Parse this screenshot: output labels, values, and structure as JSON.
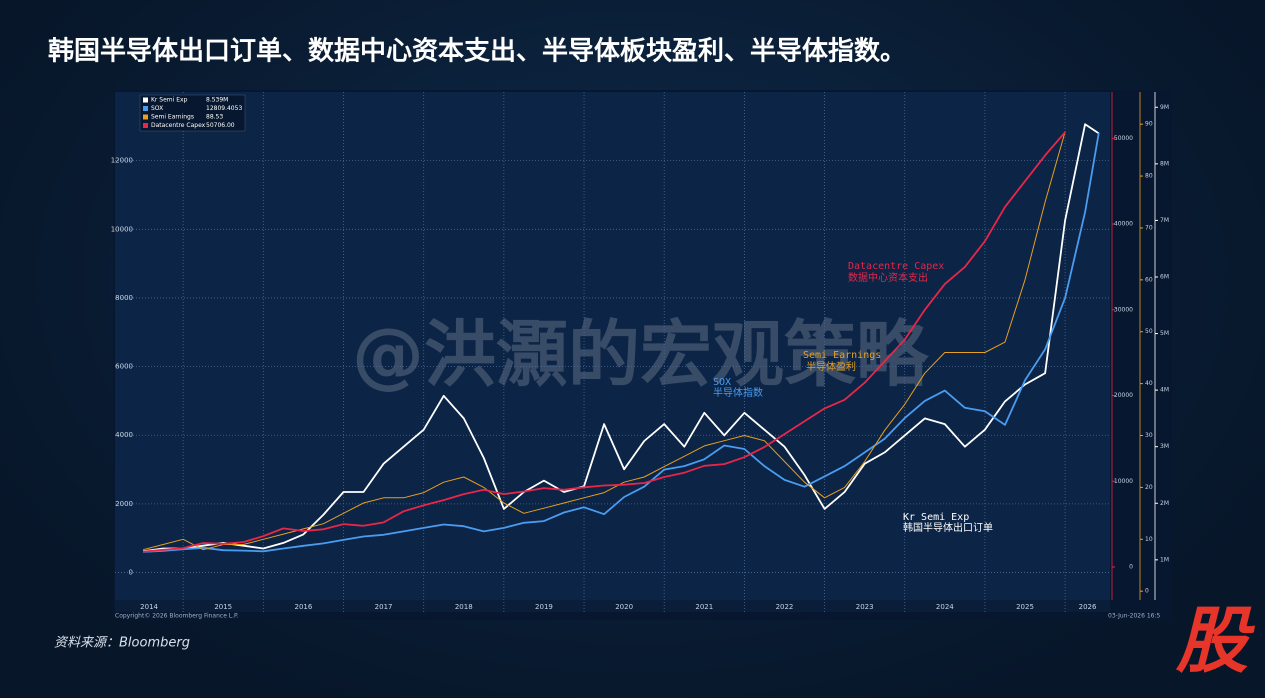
{
  "chart_data": {
    "type": "line",
    "title": "韩国半导体出口订单、数据中心资本支出、半导体板块盈利、半导体指数。",
    "x": [
      2014.5,
      2014.75,
      2015,
      2015.25,
      2015.5,
      2015.75,
      2016,
      2016.25,
      2016.5,
      2016.75,
      2017,
      2017.25,
      2017.5,
      2017.75,
      2018,
      2018.25,
      2018.5,
      2018.75,
      2019,
      2019.25,
      2019.5,
      2019.75,
      2020,
      2020.25,
      2020.5,
      2020.75,
      2021,
      2021.25,
      2021.5,
      2021.75,
      2022,
      2022.25,
      2022.5,
      2022.75,
      2023,
      2023.25,
      2023.5,
      2023.75,
      2024,
      2024.25,
      2024.5,
      2024.75,
      2025,
      2025.25,
      2025.5,
      2025.75,
      2026,
      2026.25,
      2026.42
    ],
    "xlim": [
      2014.15,
      2026.56
    ],
    "xticks": [
      {
        "value": 2014,
        "label": "2014"
      },
      {
        "value": 2015,
        "label": "2015"
      },
      {
        "value": 2016,
        "label": "2016"
      },
      {
        "value": 2017,
        "label": "2017"
      },
      {
        "value": 2018,
        "label": "2018"
      },
      {
        "value": 2019,
        "label": "2019"
      },
      {
        "value": 2020,
        "label": "2020"
      },
      {
        "value": 2021,
        "label": "2021"
      },
      {
        "value": 2022,
        "label": "2022"
      },
      {
        "value": 2023,
        "label": "2023"
      },
      {
        "value": 2024,
        "label": "2024"
      },
      {
        "value": 2025,
        "label": "2025"
      },
      {
        "value": 2026,
        "label": "2026"
      }
    ],
    "ylim": [
      -800,
      14000
    ],
    "yticks": [
      0,
      2000,
      4000,
      6000,
      8000,
      10000,
      12000
    ],
    "y2lim": [
      -3850,
      55400
    ],
    "y2ticks": [
      0,
      10000,
      20000,
      30000,
      40000,
      50000
    ],
    "y3lim": [
      -1.7,
      96.2
    ],
    "y3ticks": [
      0,
      10,
      20,
      30,
      40,
      50,
      60,
      70,
      80,
      90
    ],
    "y4lim": [
      0.29,
      9.27
    ],
    "y4ticks": [
      {
        "value": 1,
        "label": "1M"
      },
      {
        "value": 2,
        "label": "2M"
      },
      {
        "value": 3,
        "label": "3M"
      },
      {
        "value": 4,
        "label": "4M"
      },
      {
        "value": 5,
        "label": "5M"
      },
      {
        "value": 6,
        "label": "6M"
      },
      {
        "value": 7,
        "label": "7M"
      },
      {
        "value": 8,
        "label": "8M"
      },
      {
        "value": 9,
        "label": "9M"
      }
    ],
    "grid": true,
    "series": [
      {
        "name": "Kr Semi Exp",
        "legend_value": "8.539M",
        "color": "#ffffff",
        "axis": "y4",
        "values": [
          1.15,
          1.2,
          1.2,
          1.25,
          1.3,
          1.25,
          1.2,
          1.3,
          1.45,
          1.8,
          2.2,
          2.2,
          2.7,
          3.0,
          3.3,
          3.9,
          3.5,
          2.8,
          1.9,
          2.2,
          2.4,
          2.2,
          2.3,
          3.4,
          2.6,
          3.1,
          3.4,
          3.0,
          3.6,
          3.2,
          3.6,
          3.3,
          3.0,
          2.5,
          1.9,
          2.2,
          2.7,
          2.9,
          3.2,
          3.5,
          3.4,
          3.0,
          3.3,
          3.8,
          4.1,
          4.3,
          7.0,
          8.7,
          8.539
        ]
      },
      {
        "name": "SOX",
        "legend_value": "12809.4053",
        "color": "#4a9cf0",
        "axis": "y",
        "values": [
          600,
          630,
          680,
          720,
          650,
          640,
          620,
          700,
          780,
          850,
          950,
          1050,
          1100,
          1200,
          1300,
          1400,
          1350,
          1200,
          1300,
          1450,
          1500,
          1750,
          1900,
          1700,
          2200,
          2500,
          3000,
          3100,
          3300,
          3700,
          3600,
          3100,
          2700,
          2500,
          2800,
          3100,
          3500,
          3900,
          4500,
          5000,
          5300,
          4800,
          4700,
          4300,
          5600,
          6500,
          8000,
          10500,
          12809.4053
        ]
      },
      {
        "name": "Semi Earnings",
        "legend_value": "88.53",
        "color": "#e8a020",
        "axis": "y3",
        "values": [
          8,
          9,
          10,
          8,
          9,
          9,
          10,
          11,
          12,
          13,
          15,
          17,
          18,
          18,
          19,
          21,
          22,
          20,
          17,
          15,
          16,
          17,
          18,
          19,
          21,
          22,
          24,
          26,
          28,
          29,
          30,
          29,
          25,
          21,
          18,
          20,
          25,
          31,
          36,
          42,
          46,
          46,
          46,
          48,
          60,
          75,
          88.53,
          null,
          null
        ]
      },
      {
        "name": "Datacentre Capex",
        "legend_value": "50706.00",
        "color": "#e8264a",
        "axis": "y2",
        "values": [
          1800,
          2000,
          2200,
          2800,
          2700,
          2900,
          3600,
          4500,
          4200,
          4400,
          5000,
          4800,
          5200,
          6500,
          7200,
          7800,
          8500,
          9000,
          8500,
          8800,
          9200,
          9000,
          9300,
          9500,
          9600,
          9800,
          10500,
          11000,
          11800,
          12000,
          12800,
          14000,
          15500,
          17000,
          18500,
          19500,
          21500,
          24000,
          26500,
          30000,
          33000,
          35000,
          38000,
          42000,
          45000,
          48000,
          50706,
          null,
          null
        ]
      }
    ],
    "annotations": [
      {
        "text": "Datacentre Capex",
        "color": "#e8264a"
      },
      {
        "text": "数据中心资本支出",
        "color": "#e8264a"
      },
      {
        "text": "Semi Earnings",
        "color": "#e8a020"
      },
      {
        "text": "半导体盈利",
        "color": "#e8a020"
      },
      {
        "text": "SOX",
        "color": "#4a9cf0"
      },
      {
        "text": "半导体指数",
        "color": "#4a9cf0"
      },
      {
        "text": "Kr Semi Exp",
        "color": "#ffffff"
      },
      {
        "text": "韩国半导体出口订单",
        "color": "#ffffff"
      }
    ]
  },
  "watermark": "@洪灝的宏观策略",
  "copyright": "Copyright© 2026 Bloomberg Finance L.P.",
  "timestamp": "03-Jun-2026 16:5",
  "source": "资料来源：Bloomberg",
  "logo": "股"
}
